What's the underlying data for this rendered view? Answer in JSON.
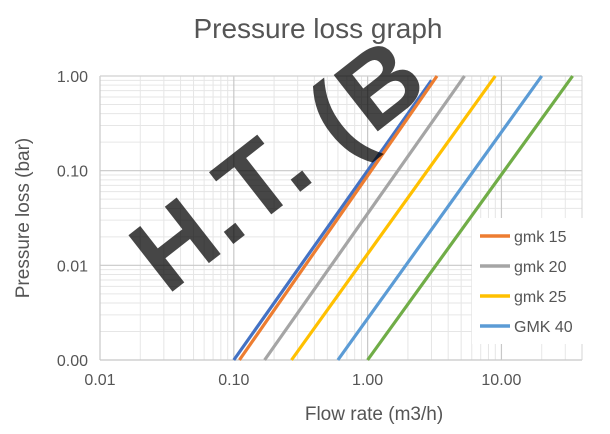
{
  "chart_data": {
    "type": "line",
    "title": "Pressure loss graph",
    "xlabel": "Flow rate (m3/h)",
    "ylabel": "Pressure loss (bar)",
    "x_scale": "log",
    "y_scale": "log",
    "xlim": [
      0.01,
      40
    ],
    "ylim": [
      0.001,
      1.0
    ],
    "x_ticks": [
      {
        "value": 0.01,
        "label": "0.01"
      },
      {
        "value": 0.1,
        "label": "0.10"
      },
      {
        "value": 1,
        "label": "1.00"
      },
      {
        "value": 10,
        "label": "10.00"
      }
    ],
    "y_ticks": [
      {
        "value": 0.001,
        "label": "0.00"
      },
      {
        "value": 0.01,
        "label": "0.01"
      },
      {
        "value": 0.1,
        "label": "0.10"
      },
      {
        "value": 1,
        "label": "1.00"
      }
    ],
    "grid": true,
    "legend_position": "right",
    "watermark": "H.T. (B",
    "series": [
      {
        "name": "",
        "color": "#4472C4",
        "legend": false,
        "x": [
          0.1,
          3.0
        ],
        "y": [
          0.001,
          0.9
        ]
      },
      {
        "name": "gmk 15",
        "color": "#ED7D31",
        "legend": true,
        "x": [
          0.11,
          3.3
        ],
        "y": [
          0.001,
          1.0
        ]
      },
      {
        "name": "gmk 20",
        "color": "#A5A5A5",
        "legend": true,
        "x": [
          0.17,
          5.3
        ],
        "y": [
          0.001,
          1.0
        ]
      },
      {
        "name": "gmk 25",
        "color": "#FFC000",
        "legend": true,
        "x": [
          0.27,
          9.0
        ],
        "y": [
          0.001,
          1.0
        ]
      },
      {
        "name": "GMK 40",
        "color": "#5B9BD5",
        "legend": true,
        "x": [
          0.6,
          20.0
        ],
        "y": [
          0.001,
          1.0
        ]
      },
      {
        "name": "",
        "color": "#70AD47",
        "legend": false,
        "x": [
          1.0,
          34.0
        ],
        "y": [
          0.001,
          1.0
        ]
      }
    ]
  }
}
